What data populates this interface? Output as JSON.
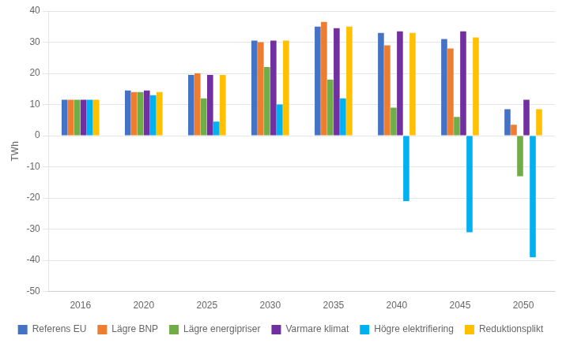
{
  "chart_data": {
    "type": "bar",
    "categories": [
      "2016",
      "2020",
      "2025",
      "2030",
      "2035",
      "2040",
      "2045",
      "2050"
    ],
    "series": [
      {
        "name": "Referens EU",
        "color": "#4472c4",
        "values": [
          11.5,
          14.5,
          19.5,
          30.5,
          35.0,
          33.0,
          31.0,
          8.5
        ]
      },
      {
        "name": "Lägre BNP",
        "color": "#ed7d31",
        "values": [
          11.5,
          14.0,
          20.0,
          30.0,
          36.5,
          29.0,
          28.0,
          3.5
        ]
      },
      {
        "name": "Lägre energipriser",
        "color": "#70ad47",
        "values": [
          11.5,
          14.0,
          12.0,
          22.0,
          18.0,
          9.0,
          6.0,
          -13.0
        ]
      },
      {
        "name": "Varmare klimat",
        "color": "#7030a0",
        "values": [
          11.5,
          14.5,
          19.5,
          30.5,
          34.5,
          33.5,
          33.5,
          11.5
        ]
      },
      {
        "name": "Högre elektrifiering",
        "color": "#00b0f0",
        "values": [
          11.5,
          13.0,
          4.5,
          10.0,
          12.0,
          -21.0,
          -31.0,
          -39.0
        ]
      },
      {
        "name": "Reduktionsplikt",
        "color": "#ffc000",
        "values": [
          11.5,
          14.0,
          19.5,
          30.5,
          35.0,
          33.0,
          31.5,
          8.5
        ]
      }
    ],
    "ylabel": "TWh",
    "ylim": [
      -50,
      40
    ],
    "yticks": [
      -50,
      -40,
      -30,
      -20,
      -10,
      0,
      10,
      20,
      30,
      40
    ],
    "grid": true,
    "legend": "bottom"
  }
}
